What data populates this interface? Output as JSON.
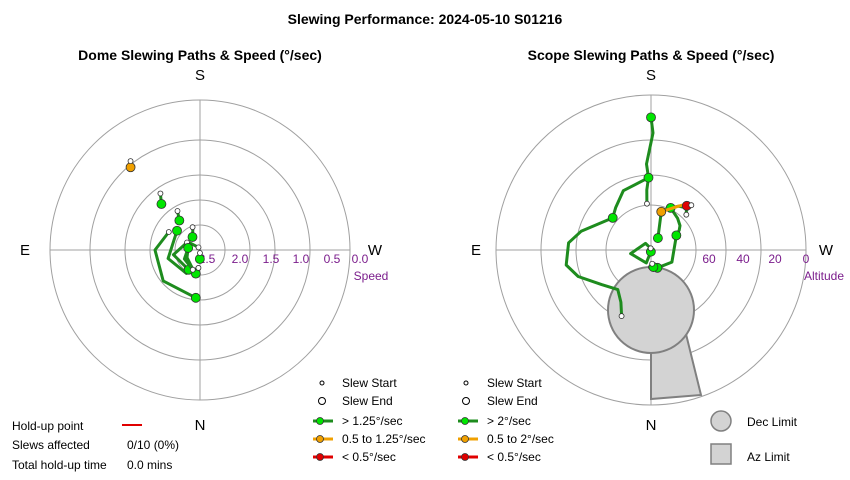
{
  "title": "Slewing Performance: 2024-05-10 S01216",
  "colors": {
    "fast": "#00e600",
    "fast_line": "#1e8c1e",
    "medium": "#f0a000",
    "slow": "#e00000",
    "limit_fill": "#d3d3d3",
    "limit_stroke": "#808080",
    "grid": "#a0a0a0",
    "tick": "#7b1d8c"
  },
  "chart_data": [
    {
      "type": "scatter",
      "subtype": "polar",
      "title": "Dome Slewing Paths & Speed (°/sec)",
      "cardinals": {
        "top": "S",
        "bottom": "N",
        "left": "E",
        "right": "W"
      },
      "radial_axis": {
        "label": "Speed",
        "ticks": [
          "2.5",
          "2.0",
          "1.5",
          "1.0",
          "0.5",
          "0.0"
        ],
        "range": [
          2.5,
          0.0
        ],
        "inverted": true
      },
      "paths": [
        {
          "speed_class": "fast",
          "points": [
            [
              -1.0,
              2.35
            ],
            [
              -1.15,
              2.42
            ],
            [
              -1.0,
              2.45
            ]
          ]
        },
        {
          "speed_class": "fast",
          "points": [
            [
              -10.0,
              2.1
            ],
            [
              -30.0,
              2.2
            ],
            [
              -60.0,
              2.25
            ],
            [
              -95.0,
              2.3
            ],
            [
              -125.0,
              2.3
            ],
            [
              -150.0,
              2.45
            ]
          ]
        },
        {
          "speed_class": "fast",
          "points": [
            [
              -5.0,
              1.7
            ],
            [
              -50.0,
              1.7
            ],
            [
              -90.0,
              1.75
            ],
            [
              -120.0,
              1.9
            ]
          ]
        },
        {
          "speed_class": "fast",
          "points": [
            [
              -130.0,
              2.0
            ],
            [
              -75.0,
              1.95
            ],
            [
              -30.0,
              2.05
            ],
            [
              -5.0,
              2.2
            ]
          ]
        },
        {
          "speed_class": "fast",
          "points": [
            [
              -30.0,
              2.12
            ],
            [
              -80.0,
              2.05
            ],
            [
              -120.0,
              2.25
            ]
          ]
        },
        {
          "speed_class": "fast",
          "points": [
            [
              -100.0,
              2.3
            ],
            [
              -60.0,
              2.2
            ],
            [
              -20.0,
              2.15
            ]
          ]
        },
        {
          "speed_class": "fast",
          "points": [
            [
              -150.0,
              2.25
            ],
            [
              -160.0,
              2.15
            ],
            [
              -162.0,
              2.1
            ]
          ]
        },
        {
          "speed_class": "fast",
          "points": [
            [
              -145.0,
              1.9
            ],
            [
              -150.0,
              1.75
            ]
          ]
        },
        {
          "speed_class": "fast",
          "points": [
            [
              -140.0,
              1.5
            ],
            [
              -145.0,
              1.35
            ]
          ]
        },
        {
          "speed_class": "medium",
          "points": [
            [
              -140.0,
              0.7
            ],
            [
              -142.0,
              0.62
            ]
          ]
        }
      ],
      "slews_affected": "0/10 (0%)",
      "total_holdup": "0.0 mins"
    },
    {
      "type": "scatter",
      "subtype": "polar",
      "title": "Scope Slewing Paths & Speed (°/sec)",
      "cardinals": {
        "top": "S",
        "bottom": "N",
        "left": "E",
        "right": "W"
      },
      "radial_axis": {
        "label": "Altitude",
        "ticks": [
          "60",
          "40",
          "20",
          "0"
        ],
        "range": [
          90,
          0
        ]
      },
      "paths": [
        {
          "speed_class": "fast",
          "points": [
            [
              180.0,
              13
            ],
            [
              181.0,
              22
            ],
            [
              177.0,
              40
            ],
            [
              178.0,
              48
            ],
            [
              176.0,
              55
            ],
            [
              175.0,
              63
            ]
          ]
        },
        {
          "speed_class": "fast",
          "points": [
            [
              178.0,
              48
            ],
            [
              155.0,
              52
            ],
            [
              140.0,
              58
            ],
            [
              130.0,
              61
            ]
          ]
        },
        {
          "speed_class": "fast",
          "points": [
            [
              130.0,
              61
            ],
            [
              105.0,
              48
            ],
            [
              95.0,
              42
            ],
            [
              80.0,
              40
            ],
            [
              70.0,
              45
            ],
            [
              55.0,
              55
            ],
            [
              40.0,
              60
            ],
            [
              30.0,
              55
            ],
            [
              24.0,
              48
            ]
          ]
        },
        {
          "speed_class": "fast",
          "points": [
            [
              5.0,
              89
            ],
            [
              20.0,
              82
            ],
            [
              80.0,
              78
            ],
            [
              140.0,
              85
            ],
            [
              170.0,
              89
            ]
          ]
        },
        {
          "speed_class": "fast",
          "points": [
            [
              -150.0,
              82
            ],
            [
              -165.0,
              67
            ],
            [
              -160.0,
              65
            ],
            [
              -155.0,
              63
            ],
            [
              -148.0,
              60
            ],
            [
              -140.0,
              58
            ],
            [
              -135.0,
              61
            ]
          ]
        },
        {
          "speed_class": "fast",
          "points": [
            [
              -155.0,
              63
            ],
            [
              -140.0,
              66
            ],
            [
              -130.0,
              68
            ],
            [
              -125.0,
              70
            ],
            [
              -120.0,
              73
            ]
          ]
        },
        {
          "speed_class": "medium",
          "points": [
            [
              -165.0,
              67
            ],
            [
              -148.0,
              60
            ],
            [
              -142.0,
              56
            ]
          ]
        },
        {
          "speed_class": "slow",
          "points": [
            [
              -141.0,
              57
            ],
            [
              -138.0,
              55
            ]
          ]
        },
        {
          "speed_class": "fast",
          "points": [
            [
              -120.0,
              73
            ],
            [
              -60.0,
              76
            ],
            [
              -20.0,
              79
            ],
            [
              -10.0,
              80
            ]
          ]
        },
        {
          "speed_class": "fast",
          "points": [
            [
              -20.0,
              79
            ],
            [
              0.0,
              80
            ]
          ]
        },
        {
          "speed_class": "fast",
          "points": [
            [
              -8.0,
              80
            ],
            [
              -5.0,
              82
            ]
          ]
        }
      ]
    }
  ],
  "legend_dome": {
    "slew_start": "Slew Start",
    "slew_end": "Slew End",
    "fast": "> 1.25°/sec",
    "medium": "0.5 to 1.25°/sec",
    "slow": "< 0.5°/sec"
  },
  "legend_scope": {
    "slew_start": "Slew Start",
    "slew_end": "Slew End",
    "fast": "> 2°/sec",
    "medium": "0.5 to 2°/sec",
    "slow": "< 0.5°/sec"
  },
  "limits_legend": {
    "dec": "Dec Limit",
    "az": "Az Limit"
  },
  "holdup": {
    "point_label": "Hold-up point",
    "slews_affected_label": "Slews affected",
    "slews_affected_value": "0/10 (0%)",
    "total_label": "Total hold-up time",
    "total_value": "0.0 mins"
  }
}
